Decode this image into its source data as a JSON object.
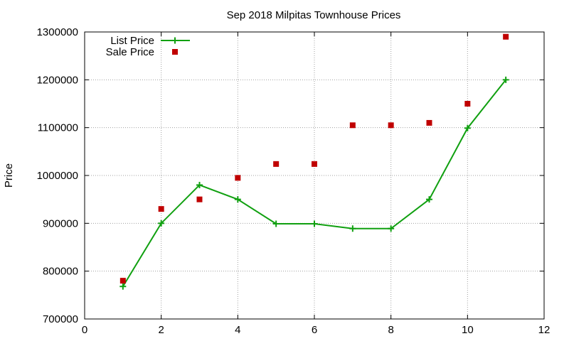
{
  "chart_data": {
    "type": "line",
    "title": "Sep 2018 Milpitas Townhouse Prices",
    "xlabel": "",
    "ylabel": "Price",
    "xlim": [
      0,
      12
    ],
    "ylim": [
      700000,
      1300000
    ],
    "x_ticks": [
      "0",
      "2",
      "4",
      "6",
      "8",
      "10",
      "12"
    ],
    "y_ticks": [
      "700000",
      "800000",
      "900000",
      "1000000",
      "1100000",
      "1200000",
      "1300000"
    ],
    "grid": true,
    "legend_position": "top-left",
    "series": [
      {
        "name": "List Price",
        "style": "lines+points",
        "marker": "plus",
        "color": "#10a010",
        "x": [
          1,
          2,
          3,
          4,
          5,
          6,
          7,
          8,
          9,
          10,
          11
        ],
        "y": [
          768000,
          900000,
          980000,
          950000,
          899000,
          899000,
          889000,
          889000,
          950000,
          1099000,
          1200000
        ]
      },
      {
        "name": "Sale Price",
        "style": "points",
        "marker": "square",
        "color": "#c00000",
        "x": [
          1,
          2,
          3,
          4,
          5,
          6,
          7,
          8,
          9,
          10,
          11
        ],
        "y": [
          780000,
          930000,
          950000,
          995000,
          1024000,
          1024000,
          1105000,
          1105000,
          1110000,
          1150000,
          1290000
        ]
      }
    ]
  }
}
